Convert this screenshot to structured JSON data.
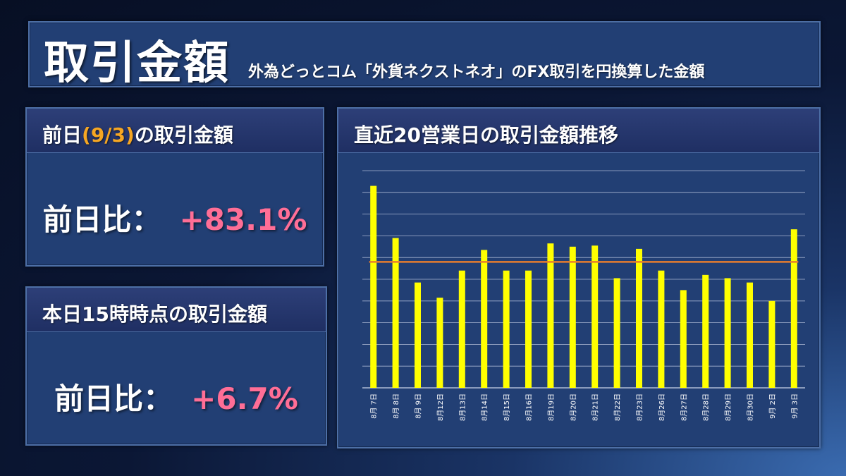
{
  "header": {
    "title": "取引金額",
    "subtitle": "外為どっとコム「外貨ネクストネオ」のFX取引を円換算した金額"
  },
  "prev_day": {
    "title_prefix": "前日",
    "title_date": "(9/3)",
    "title_suffix": "の取引金額",
    "ratio_label": "前日比：",
    "ratio_value": "+83.1%"
  },
  "today": {
    "title": "本日15時時点の取引金額",
    "ratio_label": "前日比：",
    "ratio_value": "+6.7%"
  },
  "colors": {
    "bar": "#ffff00",
    "average_line": "#e87d2e",
    "ratio_value": "#ff6e96",
    "date_highlight": "#f5a623"
  },
  "chart_data": {
    "type": "bar",
    "title": "直近20営業日の取引金額推移",
    "categories": [
      "8月 7日",
      "8月 8日",
      "8月 9日",
      "8月12日",
      "8月13日",
      "8月14日",
      "8月15日",
      "8月16日",
      "8月19日",
      "8月20日",
      "8月21日",
      "8月22日",
      "8月23日",
      "8月26日",
      "8月27日",
      "8月28日",
      "8月29日",
      "8月30日",
      "9月 2日",
      "9月 3日"
    ],
    "values": [
      9.3,
      6.9,
      4.85,
      4.15,
      5.4,
      6.35,
      5.4,
      5.4,
      6.65,
      6.5,
      6.55,
      5.05,
      6.4,
      5.4,
      4.5,
      5.2,
      5.05,
      4.85,
      4.0,
      7.3
    ],
    "average": 5.8,
    "ylim": [
      0,
      10
    ],
    "grid": true,
    "legend": "none"
  }
}
